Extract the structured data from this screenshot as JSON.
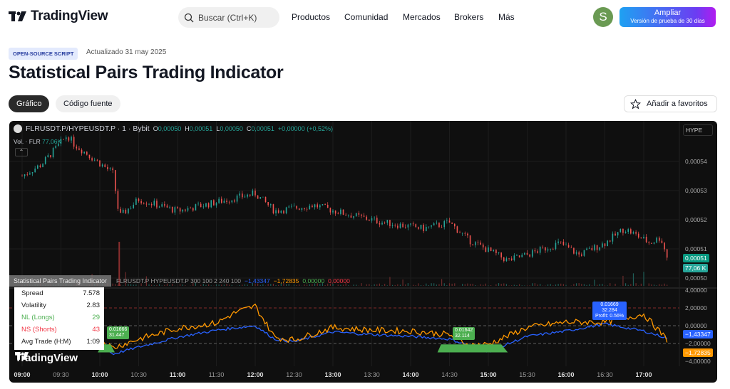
{
  "header": {
    "logo": "TradingView",
    "search_placeholder": "Buscar (Ctrl+K)",
    "nav": [
      "Productos",
      "Comunidad",
      "Mercados",
      "Brokers",
      "Más"
    ],
    "avatar_letter": "S",
    "upgrade_label": "Ampliar",
    "upgrade_sub": "Versión de prueba de 30 días"
  },
  "script": {
    "badge": "OPEN-SOURCE SCRIPT",
    "updated": "Actualizado 31 may 2025",
    "title": "Statistical Pairs Trading Indicator"
  },
  "tabs": [
    {
      "label": "Gráfico",
      "active": true
    },
    {
      "label": "Código fuente",
      "active": false
    }
  ],
  "favorite_label": "Añadir a favoritos",
  "chart": {
    "symbol": "FLRUSDT.P/HYPEUSDT.P · 1 · Bybit",
    "ohlc": {
      "o_label": "O",
      "o": "0,00050",
      "h_label": "H",
      "h": "0,00051",
      "l_label": "L",
      "l": "0,00050",
      "c_label": "C",
      "c": "0,00051",
      "change": "+0,00000 (+0,52%)"
    },
    "volume_legend": "Vol. · FLR",
    "volume_value": "77,06K",
    "scale_label": "HYPE",
    "price_ticks": [
      "0,00054",
      "0,00053",
      "0,00052",
      "0,00051",
      "0,00050"
    ],
    "last_price": "0,00051",
    "last_volume": "77,06 K",
    "indicator_legend": {
      "name": "Statistical Pairs Trading Indicator",
      "params": "FLRUSDT.P HYPEUSDT.P 300 100 2 240 100",
      "v1": "−1,43347",
      "v2": "−1,72835",
      "v3": "0,00000",
      "v4": "0,00000"
    },
    "indicator_ticks": [
      "4,00000",
      "2,00000",
      "0,00000",
      "−2,00000",
      "−4,00000"
    ],
    "blue_last": "−1,43347",
    "orange_last": "−1,72835",
    "time_ticks": [
      "09:00",
      "09:30",
      "10:00",
      "10:30",
      "11:00",
      "11:30",
      "12:00",
      "12:30",
      "13:00",
      "13:30",
      "14:00",
      "14:30",
      "15:00",
      "15:30",
      "16:00",
      "16:30",
      "17:00"
    ],
    "trade_labels": [
      {
        "l1": "0.01666",
        "l2": "31.447"
      },
      {
        "l1": "0.01642",
        "l2": "32.114"
      },
      {
        "l1": "0.01669",
        "l2": "32.284",
        "l3": "Profit: 0.56%"
      }
    ],
    "stats_table": [
      {
        "k": "Spread",
        "v": "7.578"
      },
      {
        "k": "Volatility",
        "v": "2.83"
      },
      {
        "k": "NL (Longs)",
        "v": "29"
      },
      {
        "k": "NS (Shorts)",
        "v": "43"
      },
      {
        "k": "Avg Trade (H:M)",
        "v": "1:09"
      }
    ],
    "watermark": "TradingView",
    "colors": {
      "up": "#26a69a",
      "down": "#ef5350",
      "blue": "#2962ff",
      "orange": "#ff9800",
      "long": "#4caf50",
      "short": "#f23645"
    }
  },
  "chart_data": {
    "type": "line",
    "price_series": {
      "time": [
        "09:00",
        "09:15",
        "09:35",
        "09:40",
        "10:10",
        "10:15",
        "10:30",
        "11:00",
        "11:30",
        "12:00",
        "12:15",
        "12:45",
        "13:10",
        "13:40",
        "14:10",
        "14:30",
        "14:45",
        "15:15",
        "15:30",
        "15:55",
        "16:10",
        "16:30",
        "16:45",
        "17:05",
        "17:13",
        "17:19"
      ],
      "price": [
        0.000535,
        0.000539,
        0.000549,
        0.000546,
        0.000536,
        0.000521,
        0.000527,
        0.000523,
        0.000526,
        0.000529,
        0.000523,
        0.000525,
        0.000522,
        0.000519,
        0.000517,
        0.000519,
        0.000513,
        0.000506,
        0.000508,
        0.000512,
        0.000508,
        0.000512,
        0.000517,
        0.000512,
        0.000514,
        0.000506
      ]
    },
    "orange_series": {
      "time": [
        "09:00",
        "09:30",
        "10:00",
        "10:10",
        "10:30",
        "11:00",
        "11:30",
        "11:45",
        "12:00",
        "12:15",
        "12:30",
        "13:00",
        "13:30",
        "14:00",
        "14:30",
        "14:45",
        "15:00",
        "15:30",
        "16:00",
        "16:30",
        "17:00",
        "17:10",
        "17:19"
      ],
      "value": [
        -1.0,
        -1.6,
        -1.5,
        -2.5,
        -1.5,
        -0.3,
        0.3,
        1.5,
        2.2,
        -1.3,
        -1.6,
        -0.2,
        -0.5,
        -0.6,
        -1.0,
        -2.2,
        -2.1,
        -0.2,
        0.4,
        0.4,
        1.3,
        -0.3,
        -1.73
      ]
    },
    "blue_series": {
      "time": [
        "09:00",
        "09:30",
        "10:00",
        "10:10",
        "10:30",
        "11:00",
        "11:30",
        "12:00",
        "12:15",
        "12:30",
        "13:00",
        "13:30",
        "14:00",
        "14:30",
        "14:45",
        "15:00",
        "15:30",
        "16:00",
        "16:30",
        "17:00",
        "17:19"
      ],
      "value": [
        -1.0,
        -1.8,
        -2.0,
        -3.2,
        -2.4,
        -1.3,
        -0.5,
        0.0,
        -1.5,
        -1.8,
        -0.7,
        -1.0,
        -1.2,
        -1.5,
        -2.2,
        -2.9,
        -1.2,
        -0.6,
        0.2,
        -0.6,
        -1.43
      ]
    },
    "levels": [
      2,
      0,
      -2
    ],
    "ylim_price": [
      0.000498,
      0.000552
    ],
    "ylim_indicator": [
      -4.5,
      4.5
    ]
  }
}
